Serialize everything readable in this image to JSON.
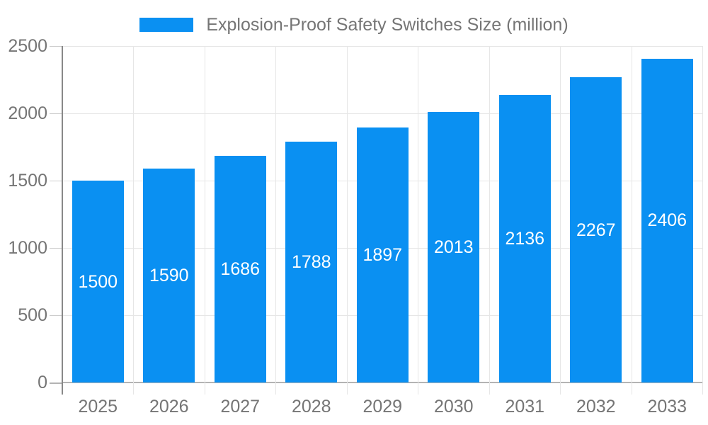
{
  "chart_data": {
    "type": "bar",
    "legend": "Explosion-Proof Safety Switches Size (million)",
    "categories": [
      "2025",
      "2026",
      "2027",
      "2028",
      "2029",
      "2030",
      "2031",
      "2032",
      "2033"
    ],
    "values": [
      1500,
      1590,
      1686,
      1788,
      1897,
      2013,
      2136,
      2267,
      2406
    ],
    "ylim": [
      0,
      2500
    ],
    "yticks": [
      0,
      500,
      1000,
      1500,
      2000,
      2500
    ],
    "ytick_labels": [
      "0",
      "500",
      "1000",
      "1500",
      "2000",
      "2500"
    ],
    "grid": true,
    "legend_position": "top",
    "bar_labels_inside": true,
    "colors": {
      "bar": "#0a90f2",
      "axis_text": "#757575",
      "grid_line": "#e6e6e6",
      "y_axis_line": "#888888",
      "baseline": "#b3b3b3",
      "tick": "#cccccc",
      "bar_label": "#ffffff",
      "background": "#ffffff"
    }
  }
}
